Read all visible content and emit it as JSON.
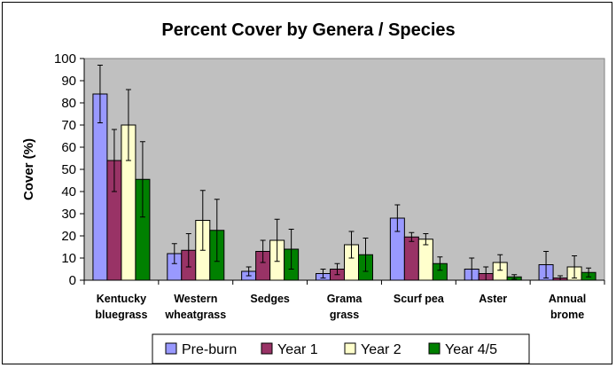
{
  "chart_data": {
    "type": "bar",
    "title": "Percent Cover by Genera / Species",
    "xlabel": "",
    "ylabel": "Cover (%)",
    "ylim": [
      0,
      100
    ],
    "yticks": [
      0,
      10,
      20,
      30,
      40,
      50,
      60,
      70,
      80,
      90,
      100
    ],
    "grid": false,
    "legend_position": "bottom",
    "categories": [
      [
        "Kentucky",
        "bluegrass"
      ],
      [
        "Western",
        "wheatgrass"
      ],
      [
        "Sedges"
      ],
      [
        "Grama",
        "grass"
      ],
      [
        "Scurf pea"
      ],
      [
        "Aster"
      ],
      [
        "Annual",
        "brome"
      ]
    ],
    "series": [
      {
        "name": "Pre-burn",
        "color": "#9999ff",
        "values": [
          84,
          12,
          4,
          3,
          28,
          5,
          7
        ],
        "errors": [
          13,
          4.5,
          2,
          2,
          6,
          5,
          6
        ]
      },
      {
        "name": "Year 1",
        "color": "#993366",
        "values": [
          54,
          13.5,
          13,
          5,
          19.5,
          3,
          1
        ],
        "errors": [
          14,
          7.5,
          5,
          2.5,
          2,
          3,
          1
        ]
      },
      {
        "name": "Year 2",
        "color": "#ffffcc",
        "values": [
          70,
          27,
          18,
          16,
          18.5,
          8,
          6
        ],
        "errors": [
          16,
          13.5,
          9.5,
          6,
          2.5,
          3.5,
          5
        ]
      },
      {
        "name": "Year 4/5",
        "color": "#008000",
        "values": [
          45.5,
          22.5,
          14,
          11.5,
          7.5,
          1.5,
          3.5
        ],
        "errors": [
          17,
          14,
          9,
          7.5,
          3,
          1,
          2
        ]
      }
    ],
    "colors": {
      "plot_background": "#c0c0c0",
      "error_bar": "#000000"
    }
  }
}
